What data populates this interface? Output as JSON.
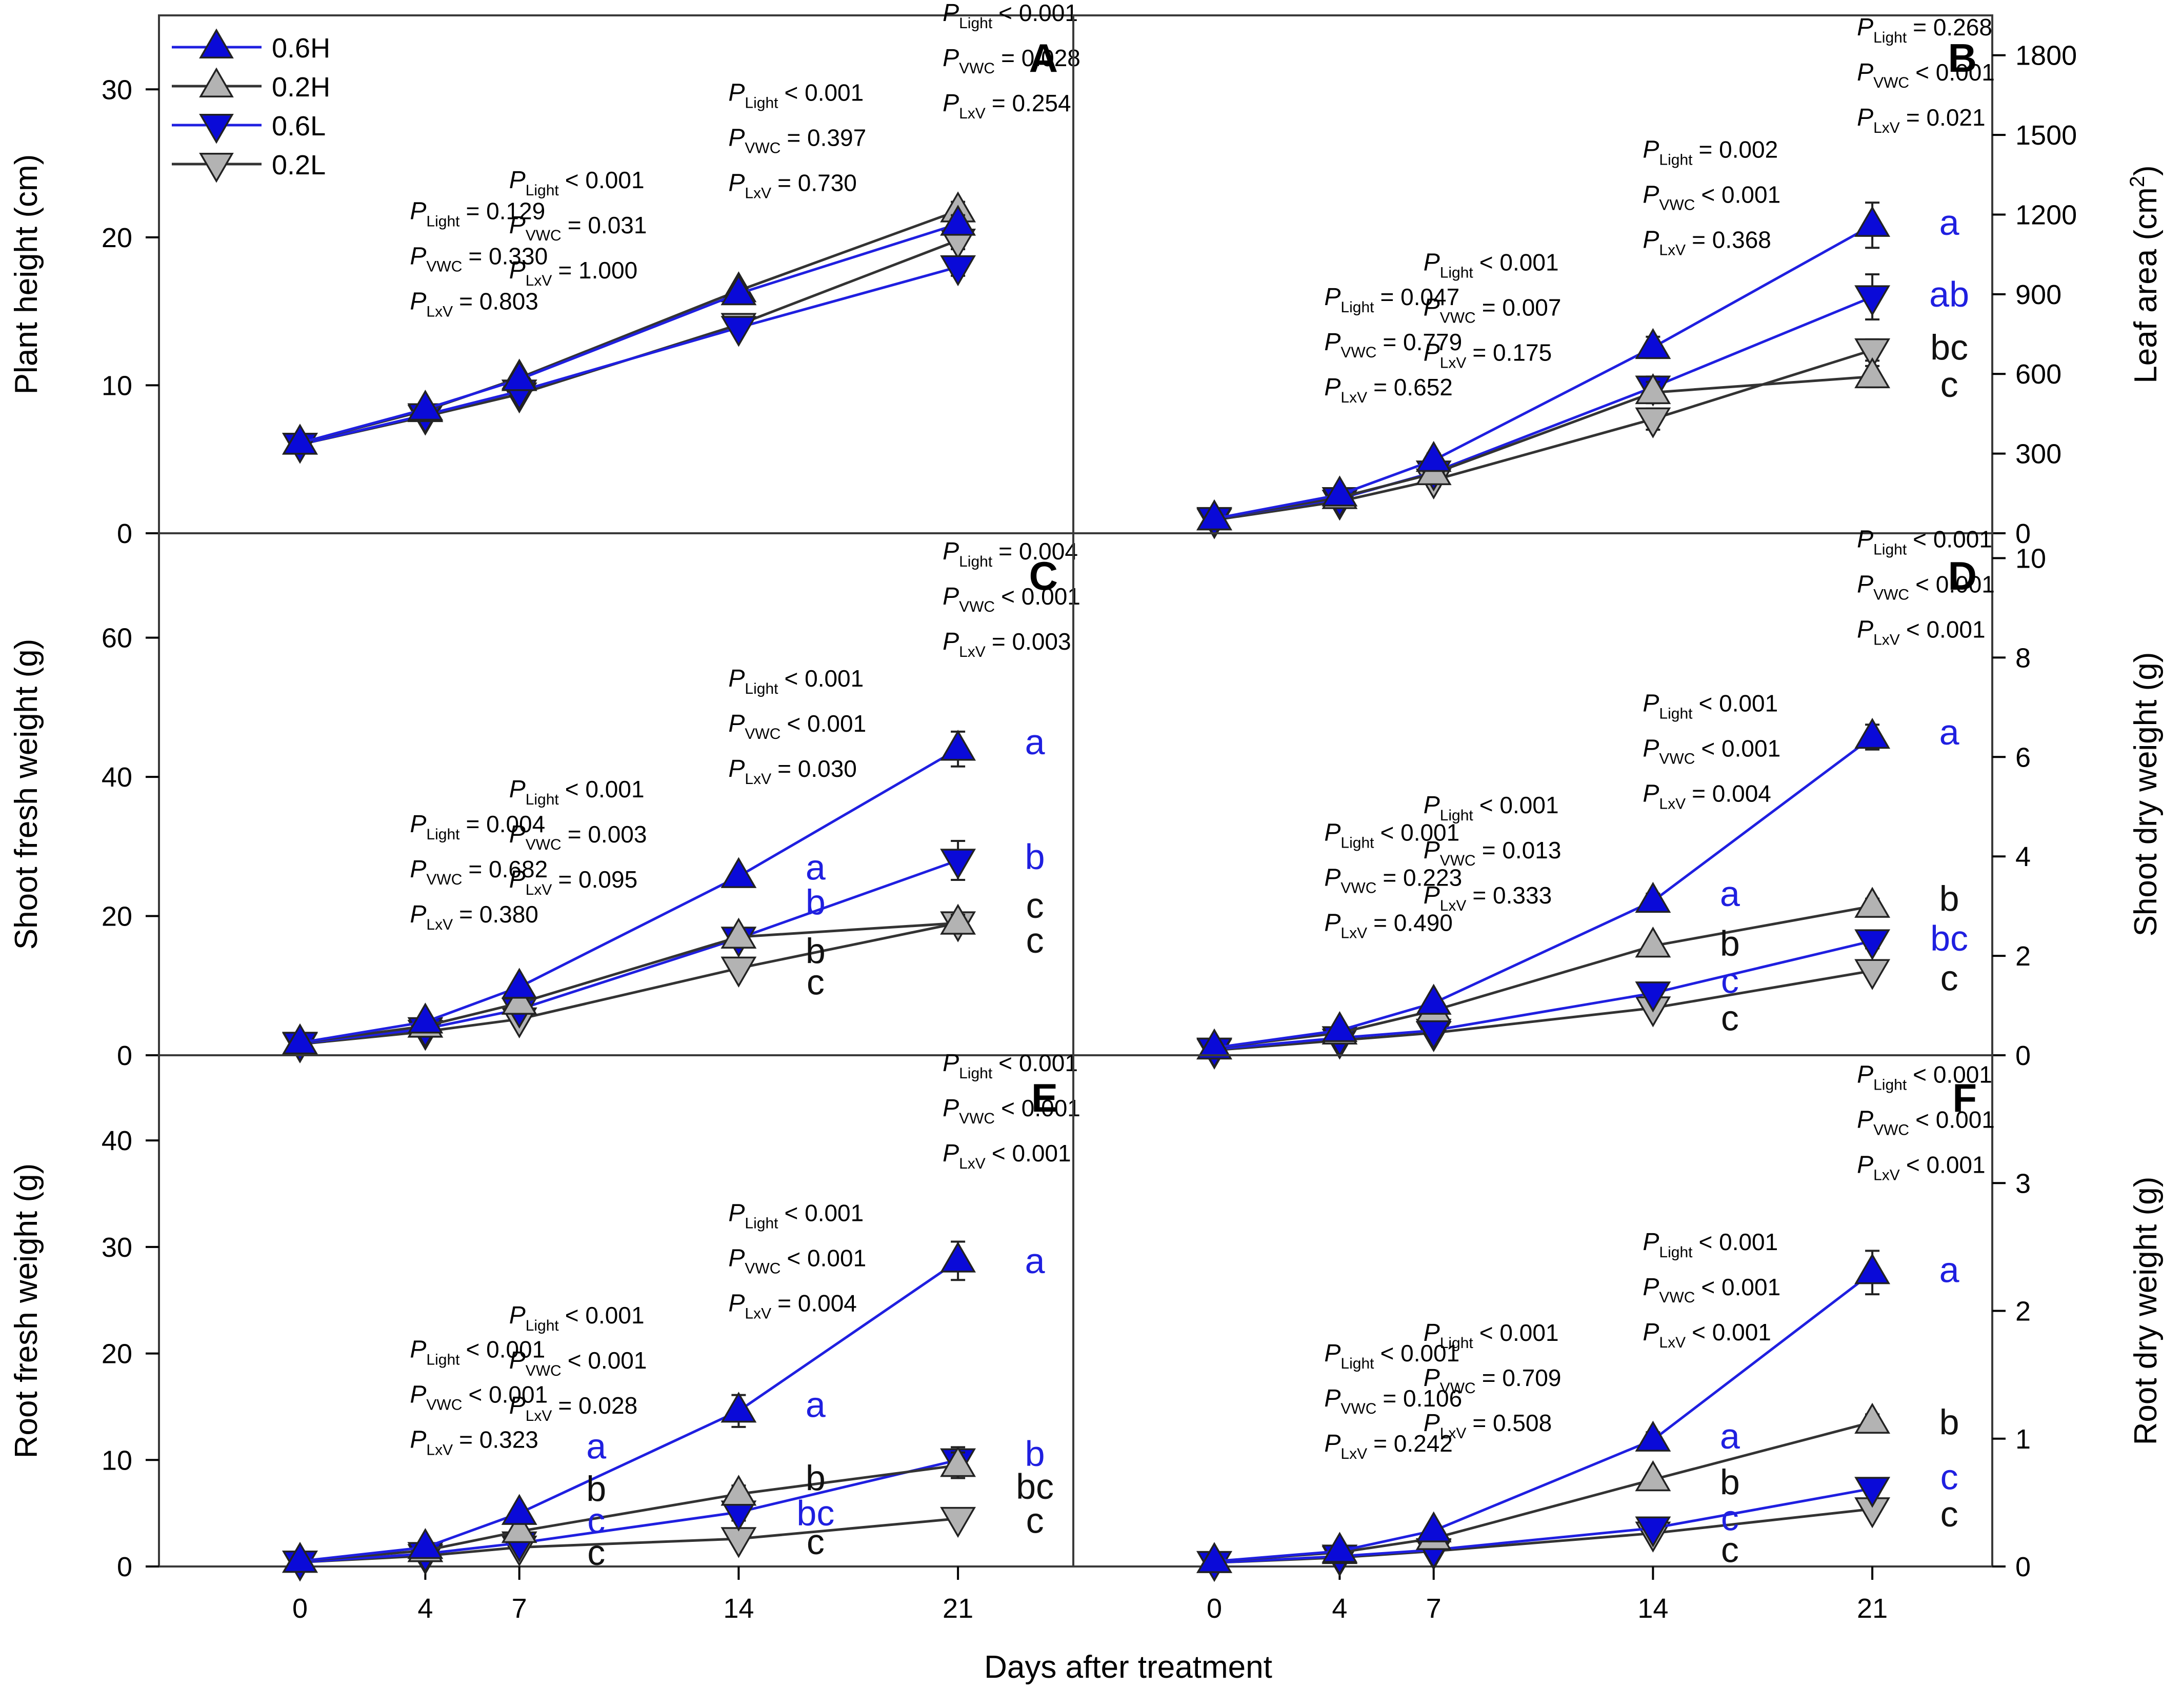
{
  "figure": {
    "xlabel": "Days after treatment",
    "x_ticks": [
      "0",
      "4",
      "7",
      "14",
      "21"
    ],
    "legend": [
      {
        "name": "0.6H",
        "color": "#1f1fe0",
        "fill": "#0a0ad8",
        "marker": "triangle-up"
      },
      {
        "name": "0.2H",
        "color": "#333333",
        "fill": "#b3b3b3",
        "marker": "triangle-up"
      },
      {
        "name": "0.6L",
        "color": "#1f1fe0",
        "fill": "#0a0ad8",
        "marker": "triangle-down"
      },
      {
        "name": "0.2L",
        "color": "#333333",
        "fill": "#b3b3b3",
        "marker": "triangle-down"
      }
    ]
  },
  "chart_data": [
    {
      "panel": "A",
      "type": "line",
      "ylabel": "Plant height (cm)",
      "y_axis": "left",
      "ylim": [
        0,
        35
      ],
      "yticks": [
        0,
        10,
        20,
        30
      ],
      "x": [
        0,
        4,
        7,
        14,
        21
      ],
      "series": [
        {
          "name": "0.6H",
          "values": [
            6.1,
            8.4,
            10.4,
            16.2,
            20.9
          ],
          "err": [
            0.3,
            0.3,
            0.4,
            0.4,
            0.6
          ]
        },
        {
          "name": "0.2H",
          "values": [
            6.1,
            8.3,
            10.5,
            16.4,
            21.8
          ],
          "err": [
            0.3,
            0.3,
            0.4,
            0.4,
            0.6
          ]
        },
        {
          "name": "0.6L",
          "values": [
            6.0,
            8.0,
            9.6,
            13.9,
            18.0
          ],
          "err": [
            0.3,
            0.3,
            0.4,
            0.4,
            0.6
          ]
        },
        {
          "name": "0.2L",
          "values": [
            6.0,
            7.9,
            9.4,
            14.1,
            19.8
          ],
          "err": [
            0.3,
            0.3,
            0.4,
            0.4,
            0.6
          ]
        }
      ],
      "stats": [
        {
          "day": 4,
          "light": "= 0.129",
          "vwc": "= 0.330",
          "lxv": "= 0.803"
        },
        {
          "day": 7,
          "light": "< 0.001",
          "vwc": "= 0.031",
          "lxv": "= 1.000"
        },
        {
          "day": 14,
          "light": "< 0.001",
          "vwc": "= 0.397",
          "lxv": "= 0.730"
        },
        {
          "day": 21,
          "light": "< 0.001",
          "vwc": "= 0.028",
          "lxv": "= 0.254"
        }
      ],
      "letters": []
    },
    {
      "panel": "B",
      "type": "line",
      "ylabel": "Leaf area (cm",
      "ylabel_sup": "2",
      "ylabel_end": ")",
      "y_axis": "right",
      "ylim": [
        0,
        1950
      ],
      "yticks": [
        0,
        300,
        600,
        900,
        1200,
        1500,
        1800
      ],
      "x": [
        0,
        4,
        7,
        14,
        21
      ],
      "series": [
        {
          "name": "0.6H",
          "values": [
            55,
            145,
            275,
            700,
            1160
          ],
          "err": [
            10,
            15,
            25,
            40,
            85
          ]
        },
        {
          "name": "0.2H",
          "values": [
            55,
            135,
            225,
            530,
            590
          ],
          "err": [
            10,
            15,
            25,
            40,
            40
          ]
        },
        {
          "name": "0.6L",
          "values": [
            55,
            130,
            230,
            550,
            890
          ],
          "err": [
            10,
            15,
            25,
            40,
            85
          ]
        },
        {
          "name": "0.2L",
          "values": [
            50,
            120,
            200,
            430,
            690
          ],
          "err": [
            10,
            15,
            25,
            40,
            40
          ]
        }
      ],
      "stats": [
        {
          "day": 4,
          "light": "= 0.047",
          "vwc": "= 0.779",
          "lxv": "= 0.652"
        },
        {
          "day": 7,
          "light": "< 0.001",
          "vwc": "= 0.007",
          "lxv": "= 0.175"
        },
        {
          "day": 14,
          "light": "= 0.002",
          "vwc": "< 0.001",
          "lxv": "= 0.368"
        },
        {
          "day": 21,
          "light": "= 0.268",
          "vwc": "< 0.001",
          "lxv": "= 0.021"
        }
      ],
      "letters": [
        {
          "text": "a",
          "day": 21,
          "value": 1170,
          "color": "blue"
        },
        {
          "text": "ab",
          "day": 21,
          "value": 900,
          "color": "blue"
        },
        {
          "text": "bc",
          "day": 21,
          "value": 700,
          "color": "black"
        },
        {
          "text": "c",
          "day": 21,
          "value": 560,
          "color": "black"
        }
      ]
    },
    {
      "panel": "C",
      "type": "line",
      "ylabel": "Shoot fresh weight (g)",
      "y_axis": "left",
      "ylim": [
        0,
        75
      ],
      "yticks": [
        0,
        20,
        40,
        60
      ],
      "x": [
        0,
        4,
        7,
        14,
        21
      ],
      "series": [
        {
          "name": "0.6H",
          "values": [
            1.8,
            4.8,
            9.8,
            25.7,
            44.0
          ],
          "err": [
            0.3,
            0.4,
            0.6,
            0.8,
            2.5
          ]
        },
        {
          "name": "0.2H",
          "values": [
            1.8,
            4.2,
            7.5,
            17.0,
            19.0
          ],
          "err": [
            0.3,
            0.4,
            0.6,
            0.8,
            1.2
          ]
        },
        {
          "name": "0.6L",
          "values": [
            1.7,
            3.8,
            6.6,
            16.8,
            28.0
          ],
          "err": [
            0.3,
            0.4,
            0.6,
            0.8,
            2.8
          ]
        },
        {
          "name": "0.2L",
          "values": [
            1.6,
            3.4,
            5.2,
            12.5,
            19.0
          ],
          "err": [
            0.3,
            0.4,
            0.6,
            0.8,
            1.2
          ]
        }
      ],
      "stats": [
        {
          "day": 4,
          "light": "= 0.004",
          "vwc": "= 0.682",
          "lxv": "= 0.380"
        },
        {
          "day": 7,
          "light": "< 0.001",
          "vwc": "= 0.003",
          "lxv": "= 0.095"
        },
        {
          "day": 14,
          "light": "< 0.001",
          "vwc": "< 0.001",
          "lxv": "= 0.030"
        },
        {
          "day": 21,
          "light": "= 0.004",
          "vwc": "< 0.001",
          "lxv": "= 0.003"
        }
      ],
      "letters": [
        {
          "text": "a",
          "day": 14,
          "value": 27,
          "color": "blue"
        },
        {
          "text": "b",
          "day": 14,
          "value": 22,
          "color": "blue"
        },
        {
          "text": "b",
          "day": 14,
          "value": 15,
          "color": "black"
        },
        {
          "text": "c",
          "day": 14,
          "value": 10.5,
          "color": "black"
        },
        {
          "text": "a",
          "day": 21,
          "value": 45,
          "color": "blue"
        },
        {
          "text": "b",
          "day": 21,
          "value": 28.5,
          "color": "blue"
        },
        {
          "text": "c",
          "day": 21,
          "value": 21.5,
          "color": "black"
        },
        {
          "text": "c",
          "day": 21,
          "value": 16.5,
          "color": "black"
        }
      ]
    },
    {
      "panel": "D",
      "type": "line",
      "ylabel": "Shoot dry weight (g)",
      "y_axis": "right",
      "ylim": [
        0,
        10.5
      ],
      "yticks": [
        0,
        2,
        4,
        6,
        8,
        10
      ],
      "x": [
        0,
        4,
        7,
        14,
        21
      ],
      "series": [
        {
          "name": "0.6H",
          "values": [
            0.15,
            0.5,
            1.05,
            3.1,
            6.4
          ],
          "err": [
            0.03,
            0.05,
            0.08,
            0.15,
            0.25
          ]
        },
        {
          "name": "0.2H",
          "values": [
            0.15,
            0.45,
            0.9,
            2.2,
            3.0
          ],
          "err": [
            0.03,
            0.05,
            0.08,
            0.12,
            0.15
          ]
        },
        {
          "name": "0.6L",
          "values": [
            0.12,
            0.35,
            0.5,
            1.25,
            2.3
          ],
          "err": [
            0.03,
            0.05,
            0.08,
            0.1,
            0.15
          ]
        },
        {
          "name": "0.2L",
          "values": [
            0.1,
            0.3,
            0.45,
            0.95,
            1.7
          ],
          "err": [
            0.03,
            0.05,
            0.08,
            0.1,
            0.12
          ]
        }
      ],
      "stats": [
        {
          "day": 4,
          "light": "< 0.001",
          "vwc": "= 0.223",
          "lxv": "= 0.490"
        },
        {
          "day": 7,
          "light": "< 0.001",
          "vwc": "= 0.013",
          "lxv": "= 0.333"
        },
        {
          "day": 14,
          "light": "< 0.001",
          "vwc": "< 0.001",
          "lxv": "= 0.004"
        },
        {
          "day": 21,
          "light": "< 0.001",
          "vwc": "< 0.001",
          "lxv": "< 0.001"
        }
      ],
      "letters": [
        {
          "text": "a",
          "day": 14,
          "value": 3.25,
          "color": "blue"
        },
        {
          "text": "b",
          "day": 14,
          "value": 2.25,
          "color": "black"
        },
        {
          "text": "c",
          "day": 14,
          "value": 1.5,
          "color": "blue"
        },
        {
          "text": "c",
          "day": 14,
          "value": 0.75,
          "color": "black"
        },
        {
          "text": "a",
          "day": 21,
          "value": 6.5,
          "color": "blue"
        },
        {
          "text": "b",
          "day": 21,
          "value": 3.15,
          "color": "black"
        },
        {
          "text": "bc",
          "day": 21,
          "value": 2.35,
          "color": "blue"
        },
        {
          "text": "c",
          "day": 21,
          "value": 1.55,
          "color": "black"
        }
      ]
    },
    {
      "panel": "E",
      "type": "line",
      "ylabel": "Root fresh weight (g)",
      "y_axis": "left",
      "ylim": [
        0,
        48
      ],
      "yticks": [
        0,
        10,
        20,
        30,
        40
      ],
      "x": [
        0,
        4,
        7,
        14,
        21
      ],
      "series": [
        {
          "name": "0.6H",
          "values": [
            0.5,
            1.8,
            5.0,
            14.6,
            28.7
          ],
          "err": [
            0.1,
            0.2,
            0.5,
            1.5,
            1.8
          ]
        },
        {
          "name": "0.2H",
          "values": [
            0.5,
            1.5,
            3.3,
            6.8,
            9.5
          ],
          "err": [
            0.1,
            0.2,
            0.4,
            0.8,
            1.2
          ]
        },
        {
          "name": "0.6L",
          "values": [
            0.4,
            1.2,
            2.2,
            5.1,
            10.0
          ],
          "err": [
            0.1,
            0.2,
            0.4,
            0.8,
            1.2
          ]
        },
        {
          "name": "0.2L",
          "values": [
            0.4,
            1.0,
            1.8,
            2.6,
            4.5
          ],
          "err": [
            0.1,
            0.2,
            0.3,
            0.4,
            0.5
          ]
        }
      ],
      "stats": [
        {
          "day": 4,
          "light": "< 0.001",
          "vwc": "< 0.001",
          "lxv": "= 0.323"
        },
        {
          "day": 7,
          "light": "< 0.001",
          "vwc": "< 0.001",
          "lxv": "= 0.028"
        },
        {
          "day": 14,
          "light": "< 0.001",
          "vwc": "< 0.001",
          "lxv": "= 0.004"
        },
        {
          "day": 21,
          "light": "< 0.001",
          "vwc": "< 0.001",
          "lxv": "< 0.001"
        }
      ],
      "letters": [
        {
          "text": "a",
          "day": 7,
          "value": 11.3,
          "color": "blue"
        },
        {
          "text": "b",
          "day": 7,
          "value": 7.3,
          "color": "black"
        },
        {
          "text": "c",
          "day": 7,
          "value": 4.3,
          "color": "blue"
        },
        {
          "text": "c",
          "day": 7,
          "value": 1.3,
          "color": "black"
        },
        {
          "text": "a",
          "day": 14,
          "value": 15.2,
          "color": "blue"
        },
        {
          "text": "b",
          "day": 14,
          "value": 8.3,
          "color": "black"
        },
        {
          "text": "bc",
          "day": 14,
          "value": 5.0,
          "color": "blue"
        },
        {
          "text": "c",
          "day": 14,
          "value": 2.3,
          "color": "black"
        },
        {
          "text": "a",
          "day": 21,
          "value": 28.7,
          "color": "blue"
        },
        {
          "text": "b",
          "day": 21,
          "value": 10.6,
          "color": "blue"
        },
        {
          "text": "bc",
          "day": 21,
          "value": 7.5,
          "color": "black"
        },
        {
          "text": "c",
          "day": 21,
          "value": 4.3,
          "color": "black"
        }
      ]
    },
    {
      "panel": "F",
      "type": "line",
      "ylabel": "Root dry weight (g)",
      "y_axis": "right",
      "ylim": [
        0,
        4.0
      ],
      "yticks": [
        0,
        1,
        2,
        3
      ],
      "x": [
        0,
        4,
        7,
        14,
        21
      ],
      "series": [
        {
          "name": "0.6H",
          "values": [
            0.04,
            0.12,
            0.28,
            0.99,
            2.3
          ],
          "err": [
            0.01,
            0.02,
            0.04,
            0.06,
            0.17
          ]
        },
        {
          "name": "0.2H",
          "values": [
            0.04,
            0.11,
            0.22,
            0.68,
            1.13
          ],
          "err": [
            0.01,
            0.02,
            0.03,
            0.05,
            0.06
          ]
        },
        {
          "name": "0.6L",
          "values": [
            0.03,
            0.08,
            0.13,
            0.3,
            0.61
          ],
          "err": [
            0.01,
            0.02,
            0.03,
            0.04,
            0.05
          ]
        },
        {
          "name": "0.2L",
          "values": [
            0.03,
            0.07,
            0.12,
            0.26,
            0.45
          ],
          "err": [
            0.01,
            0.02,
            0.03,
            0.04,
            0.04
          ]
        }
      ],
      "stats": [
        {
          "day": 4,
          "light": "< 0.001",
          "vwc": "= 0.106",
          "lxv": "= 0.242"
        },
        {
          "day": 7,
          "light": "< 0.001",
          "vwc": "= 0.709",
          "lxv": "= 0.508"
        },
        {
          "day": 14,
          "light": "< 0.001",
          "vwc": "< 0.001",
          "lxv": "< 0.001"
        },
        {
          "day": 21,
          "light": "< 0.001",
          "vwc": "< 0.001",
          "lxv": "< 0.001"
        }
      ],
      "letters": [
        {
          "text": "a",
          "day": 14,
          "value": 1.02,
          "color": "blue"
        },
        {
          "text": "b",
          "day": 14,
          "value": 0.66,
          "color": "black"
        },
        {
          "text": "c",
          "day": 14,
          "value": 0.38,
          "color": "blue"
        },
        {
          "text": "c",
          "day": 14,
          "value": 0.13,
          "color": "black"
        },
        {
          "text": "a",
          "day": 21,
          "value": 2.32,
          "color": "blue"
        },
        {
          "text": "b",
          "day": 21,
          "value": 1.13,
          "color": "black"
        },
        {
          "text": "c",
          "day": 21,
          "value": 0.7,
          "color": "blue"
        },
        {
          "text": "c",
          "day": 21,
          "value": 0.41,
          "color": "black"
        }
      ]
    }
  ]
}
